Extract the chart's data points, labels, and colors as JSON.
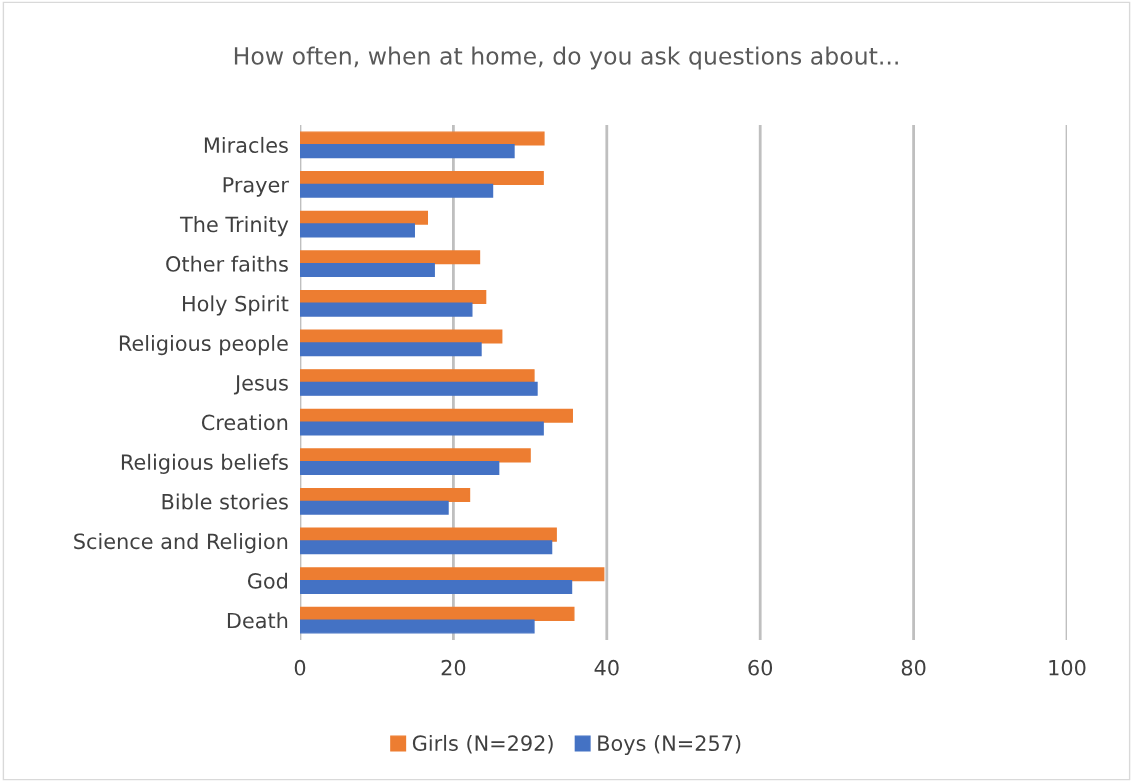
{
  "chart_data": {
    "type": "bar",
    "orientation": "horizontal",
    "title": "How often, when at home, do you ask questions about...",
    "categories": [
      "Miracles",
      "Prayer",
      "The Trinity",
      "Other faiths",
      "Holy Spirit",
      "Religious people",
      "Jesus",
      "Creation",
      "Religious beliefs",
      "Bible stories",
      "Science and Religion",
      "God",
      "Death"
    ],
    "series": [
      {
        "name": "Girls (N=292)",
        "color": "#ed7d31",
        "values": [
          31.8,
          31.7,
          16.6,
          23.4,
          24.2,
          26.3,
          30.5,
          35.5,
          30.0,
          22.1,
          33.4,
          39.6,
          35.7
        ]
      },
      {
        "name": "Boys (N=257)",
        "color": "#4472c4",
        "values": [
          27.9,
          25.1,
          14.9,
          17.5,
          22.4,
          23.6,
          30.9,
          31.7,
          25.9,
          19.3,
          32.8,
          35.4,
          30.5
        ]
      }
    ],
    "xlim": [
      0,
      100
    ],
    "xticks": [
      0,
      20,
      40,
      60,
      80,
      100
    ],
    "grid": "x",
    "legend": "bottom"
  }
}
